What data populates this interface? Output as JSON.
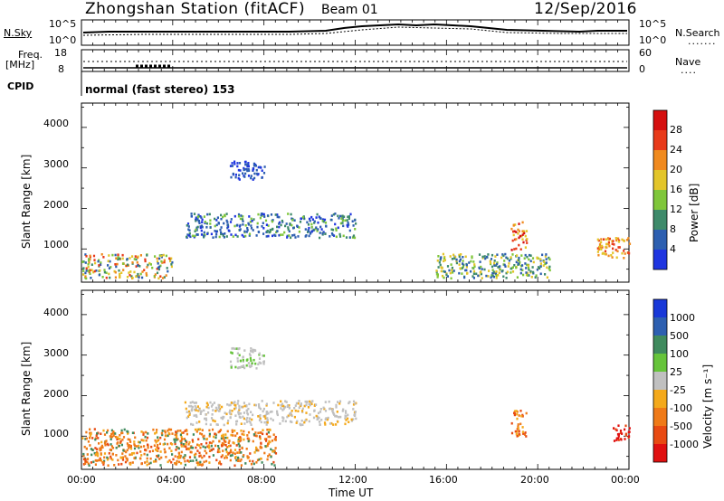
{
  "header": {
    "station_title": "Zhongshan Station (fitACF)",
    "beam": "Beam 01",
    "date": "12/Sep/2016"
  },
  "noise_panel": {
    "left_label": "N.Sky",
    "left_top": "10^5",
    "left_bottom": "10^0",
    "right_top": "10^5",
    "right_bottom": "10^0",
    "right_legend": "N.Search"
  },
  "freq_panel": {
    "label_line1": "Freq.",
    "label_line2": "[MHz]",
    "left_top": "18",
    "left_bottom": "8",
    "right_top": "60",
    "right_bottom": "0",
    "right_legend": "Nave"
  },
  "cpid_panel": {
    "label": "CPID",
    "mode": "normal (fast stereo) 153"
  },
  "power_panel": {
    "ylabel": "Slant Range [km]",
    "yticks": [
      "1000",
      "2000",
      "3000",
      "4000"
    ],
    "colorbar_label": "Power [dB]",
    "colorbar_ticks": [
      "4",
      "8",
      "12",
      "16",
      "20",
      "24",
      "28"
    ]
  },
  "velocity_panel": {
    "ylabel": "Slant Range [km]",
    "yticks": [
      "1000",
      "2000",
      "3000",
      "4000"
    ],
    "colorbar_label": "Velocity [m s⁻¹]",
    "colorbar_ticks": [
      "-1000",
      "-500",
      "-100",
      "-25",
      "25",
      "100",
      "500",
      "1000"
    ]
  },
  "xaxis": {
    "label": "Time UT",
    "ticks": [
      "00:00",
      "04:00",
      "08:00",
      "12:00",
      "16:00",
      "20:00",
      "00:00"
    ]
  },
  "chart_data": {
    "type": "heatmap",
    "x_range_hours": [
      0,
      24
    ],
    "y_range_km": [
      180,
      4600
    ],
    "power_colors": [
      "#1f35e0",
      "#2d5fb0",
      "#3e8a6a",
      "#7fc63a",
      "#e3c52a",
      "#f08a1e",
      "#e83a1a",
      "#d50f0f"
    ],
    "velocity_colors": [
      "#1838d8",
      "#2d5fb0",
      "#3f8a5d",
      "#66c43a",
      "#c0c0c0",
      "#f4a91b",
      "#ef7a18",
      "#e84a12",
      "#e01010"
    ],
    "power_regions": [
      {
        "t0": 0.0,
        "t1": 4.0,
        "r0": 300,
        "r1": 900,
        "level": "16-24"
      },
      {
        "t0": 4.5,
        "t1": 12.0,
        "r0": 1300,
        "r1": 1900,
        "level": "8-16"
      },
      {
        "t0": 6.5,
        "t1": 8.0,
        "r0": 2700,
        "r1": 3200,
        "level": "4-8"
      },
      {
        "t0": 15.5,
        "t1": 20.5,
        "r0": 300,
        "r1": 900,
        "level": "8-16"
      },
      {
        "t0": 18.8,
        "t1": 19.5,
        "r0": 1000,
        "r1": 1700,
        "level": "20-28"
      },
      {
        "t0": 22.5,
        "t1": 24.0,
        "r0": 800,
        "r1": 1300,
        "level": "20-24"
      }
    ],
    "velocity_regions": [
      {
        "t0": 0.0,
        "t1": 8.5,
        "r0": 300,
        "r1": 1200,
        "level": "-100 to -500"
      },
      {
        "t0": 4.5,
        "t1": 12.0,
        "r0": 1300,
        "r1": 1900,
        "level": "-25 to 25"
      },
      {
        "t0": 6.5,
        "t1": 8.0,
        "r0": 2700,
        "r1": 3200,
        "level": "-25 to 25"
      },
      {
        "t0": 18.8,
        "t1": 19.5,
        "r0": 1000,
        "r1": 1700,
        "level": "-100 to -500"
      },
      {
        "t0": 23.2,
        "t1": 24.0,
        "r0": 900,
        "r1": 1300,
        "level": "-500 to -1000"
      }
    ]
  }
}
